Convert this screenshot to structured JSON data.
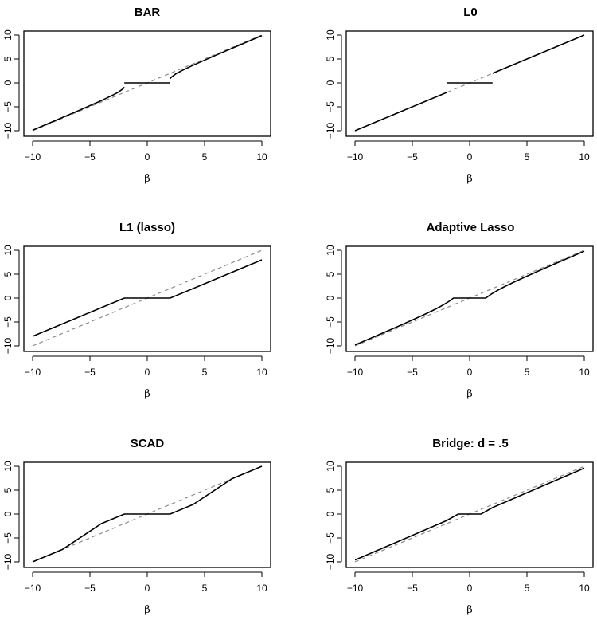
{
  "figure": {
    "layout": {
      "rows": 3,
      "cols": 2
    },
    "line_color": "#000000",
    "reference_color": "#8c8c8c"
  },
  "chart_data": [
    {
      "type": "line",
      "title": "BAR",
      "xlabel": "β",
      "ylabel": "",
      "xlim": [
        -10,
        10
      ],
      "ylim": [
        -10,
        10
      ],
      "xticks": [
        "-10",
        "-5",
        "0",
        "5",
        "10"
      ],
      "yticks": [
        "-10",
        "-5",
        "0",
        "5",
        "10"
      ],
      "grid": false,
      "series": [
        {
          "name": "estimate",
          "style": "solid",
          "segments": [
            [
              [
                -10,
                -9.9
              ],
              [
                -8,
                -7.86
              ],
              [
                -6,
                -5.8
              ],
              [
                -4,
                -3.7
              ],
              [
                -3,
                -2.55
              ],
              [
                -2.5,
                -1.9
              ],
              [
                -2.1,
                -1.2
              ],
              [
                -2,
                -0.9
              ]
            ],
            [
              [
                -2,
                0
              ],
              [
                2,
                0
              ]
            ],
            [
              [
                2,
                0.9
              ],
              [
                2.1,
                1.2
              ],
              [
                2.5,
                1.9
              ],
              [
                3,
                2.55
              ],
              [
                4,
                3.7
              ],
              [
                6,
                5.8
              ],
              [
                8,
                7.86
              ],
              [
                10,
                9.9
              ]
            ]
          ]
        },
        {
          "name": "identity",
          "style": "dashed",
          "segments": [
            [
              [
                -10,
                -10
              ],
              [
                10,
                10
              ]
            ]
          ]
        }
      ]
    },
    {
      "type": "line",
      "title": "L0",
      "xlabel": "β",
      "ylabel": "",
      "xlim": [
        -10,
        10
      ],
      "ylim": [
        -10,
        10
      ],
      "xticks": [
        "-10",
        "-5",
        "0",
        "5",
        "10"
      ],
      "yticks": [
        "-10",
        "-5",
        "0",
        "5",
        "10"
      ],
      "grid": false,
      "series": [
        {
          "name": "estimate",
          "style": "solid",
          "segments": [
            [
              [
                -10,
                -10
              ],
              [
                -2,
                -2
              ]
            ],
            [
              [
                -2,
                0
              ],
              [
                2,
                0
              ]
            ],
            [
              [
                2,
                2
              ],
              [
                10,
                10
              ]
            ]
          ]
        },
        {
          "name": "identity",
          "style": "dashed",
          "segments": [
            [
              [
                -10,
                -10
              ],
              [
                10,
                10
              ]
            ]
          ]
        }
      ]
    },
    {
      "type": "line",
      "title": "L1 (lasso)",
      "xlabel": "β",
      "ylabel": "",
      "xlim": [
        -10,
        10
      ],
      "ylim": [
        -10,
        10
      ],
      "xticks": [
        "-10",
        "-5",
        "0",
        "5",
        "10"
      ],
      "yticks": [
        "-10",
        "-5",
        "0",
        "5",
        "10"
      ],
      "grid": false,
      "series": [
        {
          "name": "estimate",
          "style": "solid",
          "segments": [
            [
              [
                -10,
                -8
              ],
              [
                -2,
                0
              ],
              [
                2,
                0
              ],
              [
                10,
                8
              ]
            ]
          ]
        },
        {
          "name": "identity",
          "style": "dashed",
          "segments": [
            [
              [
                -10,
                -10
              ],
              [
                10,
                10
              ]
            ]
          ]
        }
      ]
    },
    {
      "type": "line",
      "title": "Adaptive Lasso",
      "xlabel": "β",
      "ylabel": "",
      "xlim": [
        -10,
        10
      ],
      "ylim": [
        -10,
        10
      ],
      "xticks": [
        "-10",
        "-5",
        "0",
        "5",
        "10"
      ],
      "yticks": [
        "-10",
        "-5",
        "0",
        "5",
        "10"
      ],
      "grid": false,
      "series": [
        {
          "name": "estimate",
          "style": "solid",
          "segments": [
            [
              [
                -10,
                -9.8
              ],
              [
                -8,
                -7.75
              ],
              [
                -6,
                -5.67
              ],
              [
                -4,
                -3.5
              ],
              [
                -3,
                -2.33
              ],
              [
                -2.5,
                -1.7
              ],
              [
                -2,
                -1
              ],
              [
                -1.7,
                -0.52
              ],
              [
                -1.414,
                0
              ],
              [
                1.414,
                0
              ],
              [
                1.7,
                0.52
              ],
              [
                2,
                1
              ],
              [
                2.5,
                1.7
              ],
              [
                3,
                2.33
              ],
              [
                4,
                3.5
              ],
              [
                6,
                5.67
              ],
              [
                8,
                7.75
              ],
              [
                10,
                9.8
              ]
            ]
          ]
        },
        {
          "name": "identity",
          "style": "dashed",
          "segments": [
            [
              [
                -10,
                -10
              ],
              [
                10,
                10
              ]
            ]
          ]
        }
      ]
    },
    {
      "type": "line",
      "title": "SCAD",
      "xlabel": "β",
      "ylabel": "",
      "xlim": [
        -10,
        10
      ],
      "ylim": [
        -10,
        10
      ],
      "xticks": [
        "-10",
        "-5",
        "0",
        "5",
        "10"
      ],
      "yticks": [
        "-10",
        "-5",
        "0",
        "5",
        "10"
      ],
      "grid": false,
      "series": [
        {
          "name": "estimate",
          "style": "solid",
          "segments": [
            [
              [
                -10,
                -10
              ],
              [
                -7.4,
                -7.4
              ],
              [
                -4,
                -2
              ],
              [
                -2,
                0
              ],
              [
                2,
                0
              ],
              [
                4,
                2
              ],
              [
                7.4,
                7.4
              ],
              [
                10,
                10
              ]
            ]
          ]
        },
        {
          "name": "identity",
          "style": "dashed",
          "segments": [
            [
              [
                -10,
                -10
              ],
              [
                10,
                10
              ]
            ]
          ]
        }
      ]
    },
    {
      "type": "line",
      "title": "Bridge: d = .5",
      "xlabel": "β",
      "ylabel": "",
      "xlim": [
        -10,
        10
      ],
      "ylim": [
        -10,
        10
      ],
      "xticks": [
        "-10",
        "-5",
        "0",
        "5",
        "10"
      ],
      "yticks": [
        "-10",
        "-5",
        "0",
        "5",
        "10"
      ],
      "grid": false,
      "series": [
        {
          "name": "estimate",
          "style": "solid",
          "segments": [
            [
              [
                -10,
                -9.6
              ],
              [
                -6,
                -5.5
              ],
              [
                -3,
                -2.4
              ],
              [
                -2,
                -1.35
              ],
              [
                -1,
                0
              ],
              [
                1,
                0
              ],
              [
                2,
                1.35
              ],
              [
                3,
                2.4
              ],
              [
                6,
                5.5
              ],
              [
                10,
                9.6
              ]
            ]
          ]
        },
        {
          "name": "identity",
          "style": "dashed",
          "segments": [
            [
              [
                -10,
                -10
              ],
              [
                10,
                10
              ]
            ]
          ]
        }
      ]
    }
  ]
}
